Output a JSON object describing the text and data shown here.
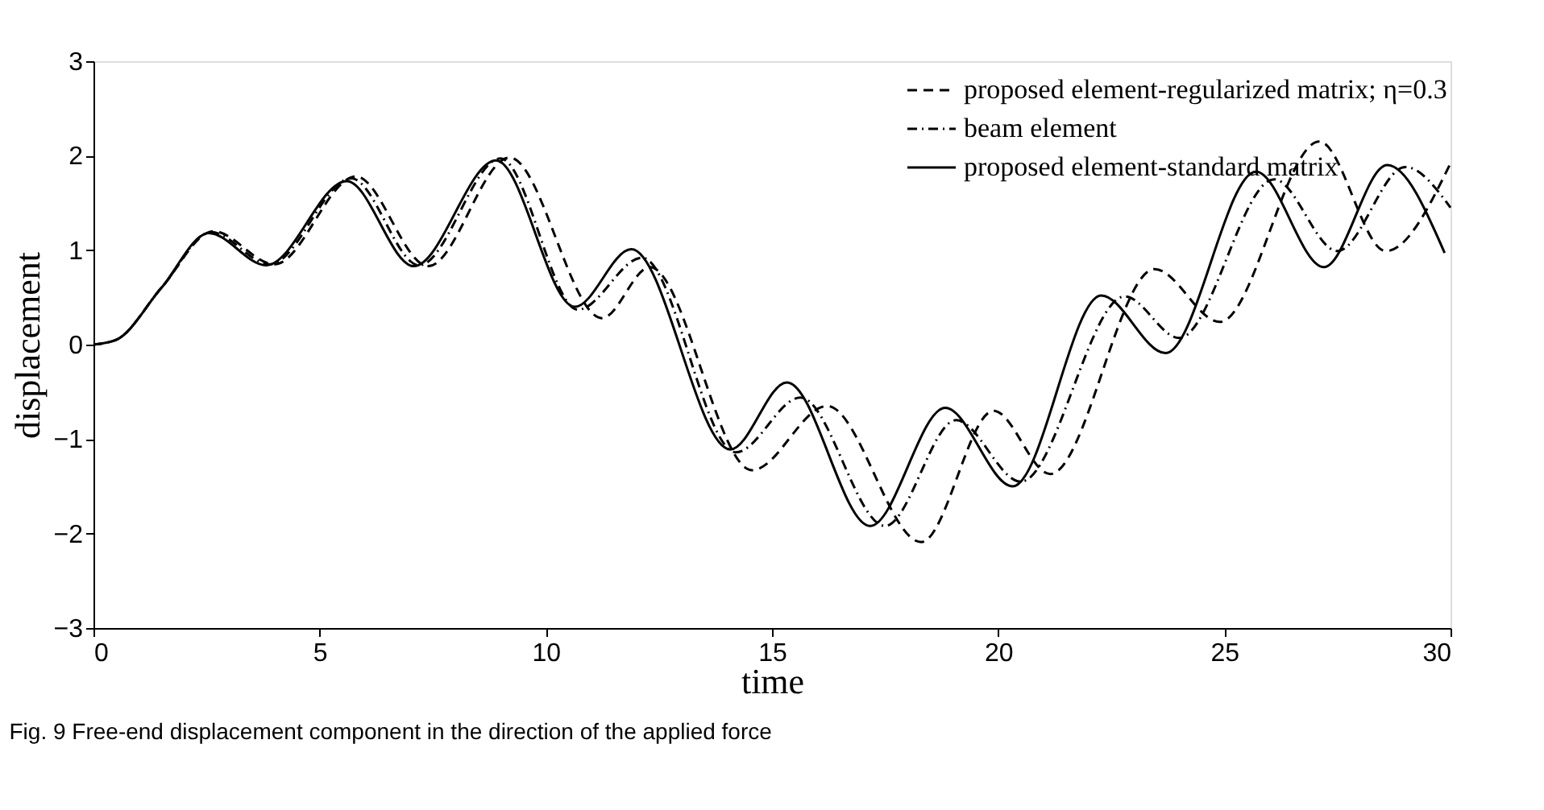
{
  "chart_data": {
    "type": "line",
    "xlabel": "time",
    "ylabel": "displacement",
    "xlim": [
      0,
      30
    ],
    "ylim": [
      -3,
      3
    ],
    "xticks": [
      0,
      5,
      10,
      15,
      20,
      25,
      30
    ],
    "yticks": [
      -3,
      -2,
      -1,
      0,
      1,
      2,
      3
    ],
    "grid": false,
    "legend": "top right",
    "annotations": [
      "Fig. 9  Free-end displacement component in the direction of the applied force"
    ],
    "series": [
      {
        "name": "proposed element-regularized matrix; η=0.3",
        "color": "#000000",
        "line_style": "dashed",
        "x": [
          0,
          0.5,
          1.5,
          2.65,
          4.0,
          5.8,
          7.4,
          9.2,
          11.24,
          12.3,
          14.56,
          16.22,
          18.3,
          19.9,
          21.15,
          23.46,
          24.9,
          27.1,
          28.57,
          30
        ],
        "values": [
          0,
          0.05,
          0.6,
          1.2,
          0.85,
          1.78,
          0.83,
          1.98,
          0.28,
          0.82,
          -1.33,
          -0.65,
          -2.09,
          -0.7,
          -1.37,
          0.8,
          0.24,
          2.15,
          0.99,
          1.92
        ]
      },
      {
        "name": "beam element",
        "color": "#000000",
        "line_style": "dashdot",
        "x": [
          0,
          0.5,
          1.5,
          2.6,
          3.9,
          5.7,
          7.2,
          9.0,
          10.71,
          12.13,
          14.2,
          15.63,
          17.5,
          19.07,
          20.5,
          22.8,
          24.0,
          26.1,
          27.5,
          29.0,
          30
        ],
        "values": [
          0,
          0.05,
          0.6,
          1.19,
          0.85,
          1.76,
          0.84,
          1.97,
          0.37,
          0.92,
          -1.14,
          -0.56,
          -1.92,
          -0.8,
          -1.45,
          0.51,
          0.07,
          1.75,
          0.99,
          1.88,
          1.45
        ]
      },
      {
        "name": "proposed element-standard matrix",
        "color": "#000000",
        "line_style": "solid",
        "x": [
          0,
          0.5,
          1.5,
          2.55,
          3.82,
          5.6,
          7.08,
          8.9,
          10.64,
          11.89,
          14.08,
          15.33,
          17.17,
          18.83,
          20.32,
          22.28,
          23.7,
          25.7,
          27.2,
          28.6,
          29.87
        ],
        "values": [
          0,
          0.05,
          0.6,
          1.18,
          0.84,
          1.73,
          0.83,
          1.95,
          0.4,
          1.01,
          -1.11,
          -0.4,
          -1.92,
          -0.67,
          -1.5,
          0.52,
          -0.09,
          1.83,
          0.82,
          1.9,
          0.97
        ]
      }
    ]
  }
}
